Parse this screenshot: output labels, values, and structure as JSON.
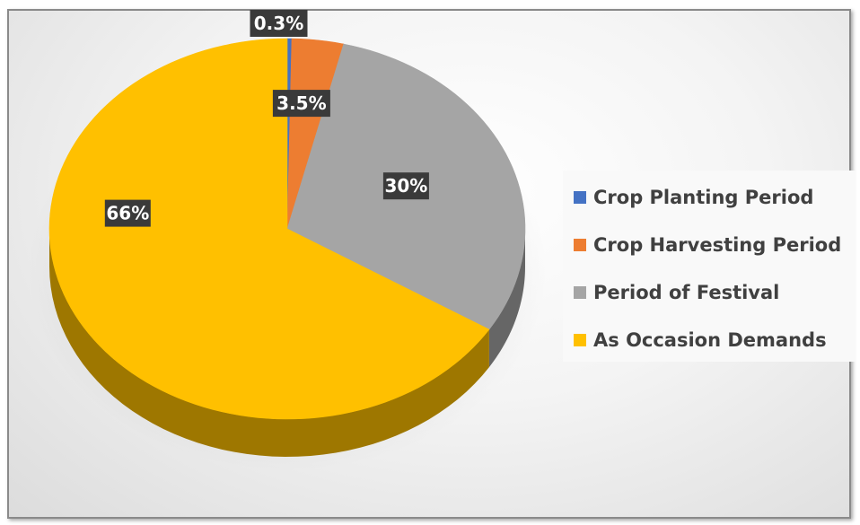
{
  "chart_data": {
    "type": "pie",
    "style": "3d",
    "categories": [
      "Crop Planting Period",
      "Crop Harvesting Period",
      "Period of Festival",
      "As Occasion Demands"
    ],
    "values": [
      0.3,
      3.5,
      30,
      66
    ],
    "data_labels": [
      "0.3%",
      "3.5%",
      "30%",
      "66%"
    ],
    "colors": [
      "#4472c4",
      "#ed7d31",
      "#a5a5a5",
      "#ffc000"
    ],
    "legend_position": "right",
    "title": ""
  },
  "legend": {
    "items": [
      {
        "label": "Crop Planting Period",
        "color": "#4472c4"
      },
      {
        "label": "Crop Harvesting Period",
        "color": "#ed7d31"
      },
      {
        "label": "Period of Festival",
        "color": "#a5a5a5"
      },
      {
        "label": "As Occasion Demands",
        "color": "#ffc000"
      }
    ]
  }
}
